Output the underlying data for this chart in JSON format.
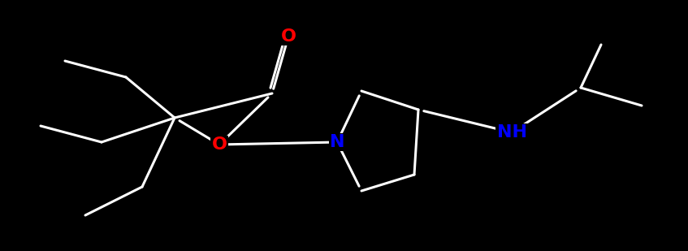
{
  "background_color": "#000000",
  "bond_color": "#ffffff",
  "line_width": 2.2,
  "fig_width": 8.47,
  "fig_height": 3.09,
  "dpi": 100,
  "O_color": "#ff0000",
  "N_color": "#0000ff",
  "xlim": [
    0,
    8.47
  ],
  "ylim": [
    0,
    3.09
  ],
  "label_fontsize": 16,
  "label_fontsize_NH": 16
}
